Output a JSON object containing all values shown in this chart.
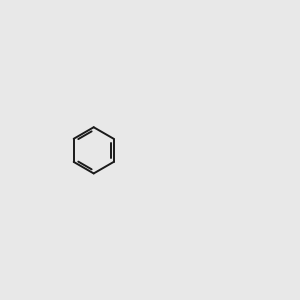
{
  "background_color": "#e8e8e8",
  "bond_color": "#1a1a1a",
  "oxygen_color": "#cc0000",
  "nitrogen_color": "#0000cc",
  "hydroxyl_color": "#4a9a9a",
  "figsize": [
    3.0,
    3.0
  ],
  "dpi": 100
}
